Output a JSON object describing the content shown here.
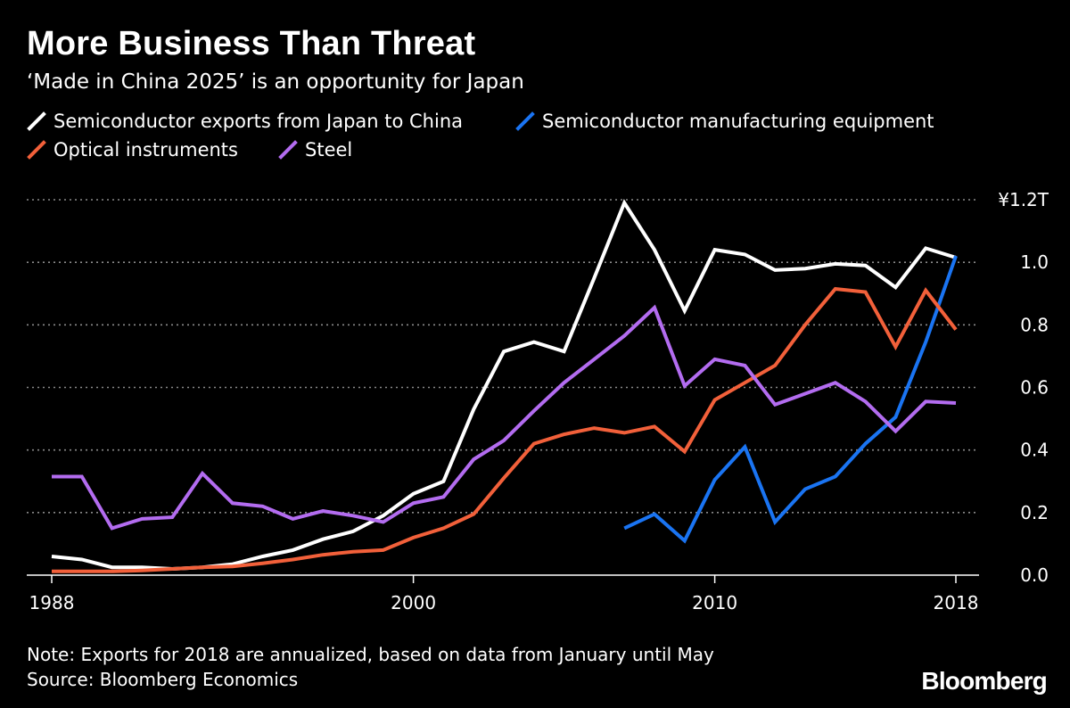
{
  "header": {
    "title": "More Business Than Threat",
    "subtitle": "‘Made in China 2025’ is an opportunity for Japan"
  },
  "footer": {
    "note": "Note: Exports for 2018 are annualized, based on data from January until May",
    "source": "Source: Bloomberg Economics",
    "brand": "Bloomberg"
  },
  "colors": {
    "background": "#000000",
    "white": "#ffffff",
    "blue": "#1a74f2",
    "orange": "#f2603a",
    "purple": "#b36cf0",
    "grid": "#8a8a8a"
  },
  "chart_data": {
    "type": "line",
    "x": [
      1988,
      1989,
      1990,
      1991,
      1992,
      1993,
      1994,
      1995,
      1996,
      1997,
      1998,
      1999,
      2000,
      2001,
      2002,
      2003,
      2004,
      2005,
      2006,
      2007,
      2008,
      2009,
      2010,
      2011,
      2012,
      2013,
      2014,
      2015,
      2016,
      2017,
      2018
    ],
    "xticks": [
      "1988",
      "2000",
      "2010",
      "2018"
    ],
    "yticks": [
      "0.0",
      "0.2",
      "0.4",
      "0.6",
      "0.8",
      "1.0",
      "¥1.2T"
    ],
    "ylim": [
      0,
      1.2
    ],
    "grid": "horizontal dotted",
    "legend_position": "top-left",
    "series": [
      {
        "name": "Semiconductor exports from Japan to China",
        "color": "#ffffff",
        "values": [
          0.06,
          0.05,
          0.025,
          0.025,
          0.02,
          0.025,
          0.035,
          0.06,
          0.08,
          0.115,
          0.14,
          0.19,
          0.26,
          0.3,
          0.53,
          0.715,
          0.745,
          0.715,
          0.95,
          1.19,
          1.04,
          0.845,
          1.04,
          1.025,
          0.975,
          0.98,
          0.995,
          0.99,
          0.92,
          1.045,
          1.015
        ]
      },
      {
        "name": "Semiconductor manufacturing equipment",
        "color": "#1a74f2",
        "values": [
          null,
          null,
          null,
          null,
          null,
          null,
          null,
          null,
          null,
          null,
          null,
          null,
          null,
          null,
          null,
          null,
          null,
          null,
          null,
          0.15,
          0.195,
          0.11,
          0.305,
          0.41,
          0.17,
          0.275,
          0.315,
          0.42,
          0.505,
          0.745,
          1.02
        ]
      },
      {
        "name": "Optical instruments",
        "color": "#f2603a",
        "values": [
          0.012,
          0.012,
          0.012,
          0.015,
          0.02,
          0.025,
          0.028,
          0.038,
          0.05,
          0.065,
          0.075,
          0.08,
          0.12,
          0.15,
          0.195,
          0.31,
          0.42,
          0.45,
          0.47,
          0.455,
          0.475,
          0.395,
          0.56,
          0.615,
          0.67,
          0.8,
          0.915,
          0.905,
          0.73,
          0.91,
          0.785
        ]
      },
      {
        "name": "Steel",
        "color": "#b36cf0",
        "values": [
          0.315,
          0.315,
          0.15,
          0.18,
          0.185,
          0.325,
          0.23,
          0.22,
          0.18,
          0.205,
          0.19,
          0.17,
          0.23,
          0.25,
          0.37,
          0.43,
          0.525,
          0.615,
          0.69,
          0.765,
          0.855,
          0.605,
          0.69,
          0.67,
          0.545,
          0.58,
          0.615,
          0.555,
          0.46,
          0.555,
          0.55
        ]
      }
    ]
  }
}
